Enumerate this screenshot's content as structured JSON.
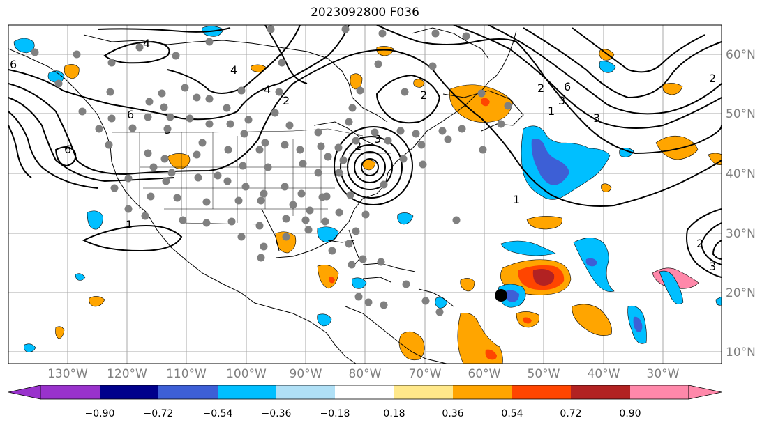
{
  "title": "2023092800 F036",
  "colors": {
    "land_outline": "#000000",
    "grid": "#a9a9a9",
    "contour": "#000000",
    "station": "#808080",
    "tc_marker": "#000000"
  },
  "lat_labels": [
    "60°N",
    "50°N",
    "40°N",
    "30°N",
    "20°N",
    "10°N"
  ],
  "lon_labels": [
    "130°W",
    "120°W",
    "110°W",
    "100°W",
    "90°W",
    "80°W",
    "70°W",
    "60°W",
    "50°W",
    "40°W",
    "30°W"
  ],
  "colorbar": {
    "ticks": [
      "−0.90",
      "−0.72",
      "−0.54",
      "−0.36",
      "−0.18",
      "0.18",
      "0.36",
      "0.54",
      "0.72",
      "0.90"
    ],
    "colors": [
      "#9932cc",
      "#00008b",
      "#3d5fd6",
      "#00bfff",
      "#b0e0f6",
      "#ffffff",
      "#ffe88a",
      "#ffa500",
      "#ff4500",
      "#b22222",
      "#ff88aa"
    ]
  },
  "contour_labels": [
    "4",
    "4",
    "2",
    "6",
    "6",
    "6",
    "1",
    "2",
    "3",
    "4",
    "2",
    "3",
    "3",
    "6",
    "1",
    "2",
    "2",
    "3",
    "1",
    "2",
    "3"
  ]
}
